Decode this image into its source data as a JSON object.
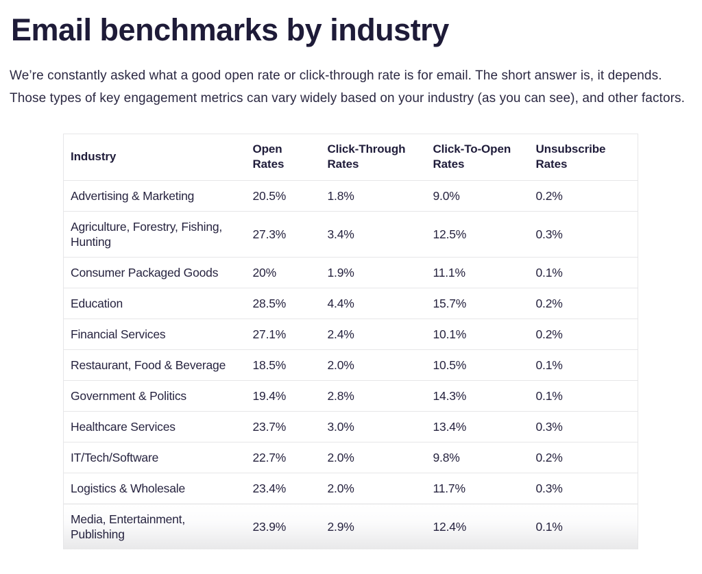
{
  "page": {
    "title": "Email benchmarks by industry",
    "intro": "We’re constantly asked what a good open rate or click-through rate is for email. The short answer is, it depends. Those types of key engagement metrics can vary widely based on your industry (as you can see), and other factors."
  },
  "table": {
    "columns": [
      "Industry",
      "Open Rates",
      "Click-Through Rates",
      "Click-To-Open Rates",
      "Unsubscribe Rates"
    ],
    "rows": [
      [
        "Advertising & Marketing",
        "20.5%",
        "1.8%",
        "9.0%",
        "0.2%"
      ],
      [
        "Agriculture, Forestry, Fishing, Hunting",
        "27.3%",
        "3.4%",
        "12.5%",
        "0.3%"
      ],
      [
        "Consumer Packaged Goods",
        "20%",
        "1.9%",
        "11.1%",
        "0.1%"
      ],
      [
        "Education",
        "28.5%",
        "4.4%",
        "15.7%",
        "0.2%"
      ],
      [
        "Financial Services",
        "27.1%",
        "2.4%",
        "10.1%",
        "0.2%"
      ],
      [
        "Restaurant, Food & Beverage",
        "18.5%",
        "2.0%",
        "10.5%",
        "0.1%"
      ],
      [
        "Government & Politics",
        "19.4%",
        "2.8%",
        "14.3%",
        "0.1%"
      ],
      [
        "Healthcare Services",
        "23.7%",
        "3.0%",
        "13.4%",
        "0.3%"
      ],
      [
        "IT/Tech/Software",
        "22.7%",
        "2.0%",
        "9.8%",
        "0.2%"
      ],
      [
        "Logistics & Wholesale",
        "23.4%",
        "2.0%",
        "11.7%",
        "0.3%"
      ],
      [
        "Media, Entertainment, Publishing",
        "23.9%",
        "2.9%",
        "12.4%",
        "0.1%"
      ]
    ]
  },
  "colors": {
    "text": "#221e3c",
    "border": "#e6e6e8",
    "bottom_fade": "#e8e8e9",
    "background": "#ffffff"
  }
}
